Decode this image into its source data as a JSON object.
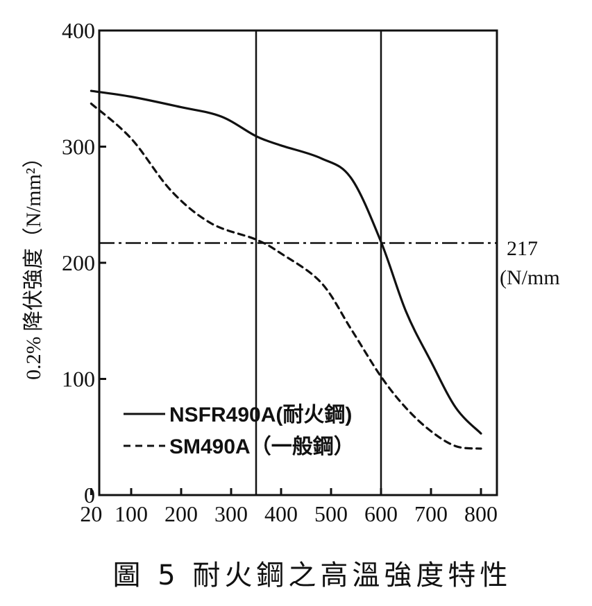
{
  "chart_data": {
    "type": "line",
    "ylabel": "0.2% 降伏強度（N/mm²）",
    "xlim": [
      0,
      800
    ],
    "ylim": [
      0,
      400
    ],
    "x_ticks": [
      20,
      100,
      200,
      300,
      400,
      500,
      600,
      700,
      800
    ],
    "y_ticks": [
      0,
      100,
      200,
      300,
      400
    ],
    "grid": "vertical lines at 350 and 600",
    "series": [
      {
        "name": "NSFR490A(耐火鋼)",
        "style": "solid",
        "color": "#111111",
        "points": [
          [
            20,
            348
          ],
          [
            100,
            343
          ],
          [
            200,
            334
          ],
          [
            280,
            326
          ],
          [
            350,
            309
          ],
          [
            400,
            301
          ],
          [
            480,
            290
          ],
          [
            540,
            273
          ],
          [
            600,
            218
          ],
          [
            650,
            158
          ],
          [
            700,
            115
          ],
          [
            750,
            75
          ],
          [
            800,
            53
          ]
        ]
      },
      {
        "name": "SM490A（一般鋼）",
        "style": "dashed",
        "color": "#111111",
        "points": [
          [
            20,
            337
          ],
          [
            100,
            307
          ],
          [
            180,
            262
          ],
          [
            260,
            234
          ],
          [
            350,
            220
          ],
          [
            400,
            208
          ],
          [
            480,
            183
          ],
          [
            540,
            143
          ],
          [
            600,
            102
          ],
          [
            650,
            75
          ],
          [
            700,
            55
          ],
          [
            750,
            42
          ],
          [
            800,
            40
          ]
        ]
      }
    ],
    "reference_line": {
      "value": 217,
      "style": "dash-dot",
      "label_value": "217",
      "label_unit": "(N/mm"
    },
    "legend_placement": "bottom-left inside plot",
    "caption": "圖 5  耐火鋼之高溫強度特性"
  }
}
